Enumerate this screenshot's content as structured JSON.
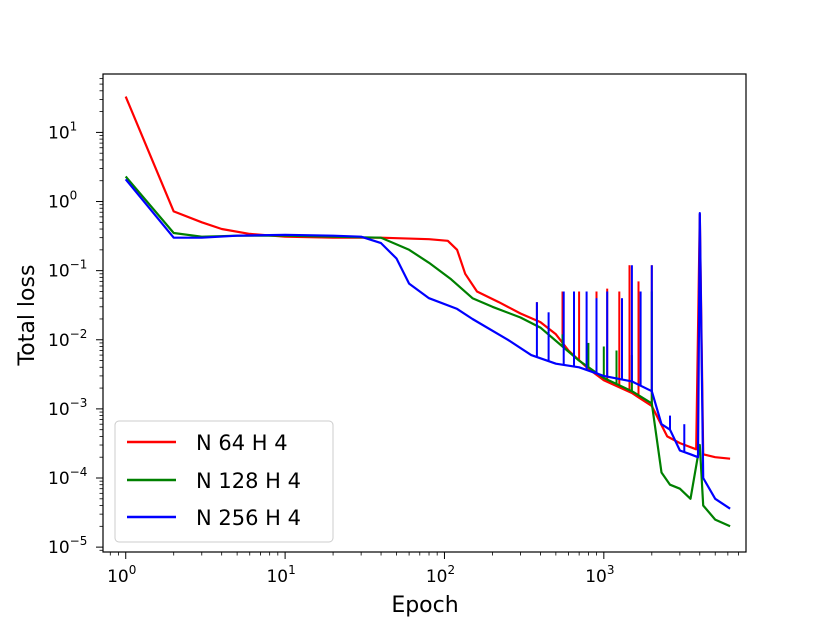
{
  "chart_data": {
    "type": "line",
    "xlabel": "Epoch",
    "ylabel": "Total loss",
    "xscale": "log",
    "yscale": "log",
    "xlim": [
      0.72,
      7800
    ],
    "ylim": [
      8.5e-06,
      70
    ],
    "grid": false,
    "legend_position": "lower-left",
    "x_ticks": [
      {
        "value": 1,
        "base": "10",
        "exp": "0"
      },
      {
        "value": 10,
        "base": "10",
        "exp": "1"
      },
      {
        "value": 100,
        "base": "10",
        "exp": "2"
      },
      {
        "value": 1000,
        "base": "10",
        "exp": "3"
      }
    ],
    "y_ticks": [
      {
        "value": 1e-05,
        "base": "10",
        "exp": "−5"
      },
      {
        "value": 0.0001,
        "base": "10",
        "exp": "−4"
      },
      {
        "value": 0.001,
        "base": "10",
        "exp": "−3"
      },
      {
        "value": 0.01,
        "base": "10",
        "exp": "−2"
      },
      {
        "value": 0.1,
        "base": "10",
        "exp": "−1"
      },
      {
        "value": 1,
        "base": "10",
        "exp": "0"
      },
      {
        "value": 10,
        "base": "10",
        "exp": "1"
      }
    ],
    "series": [
      {
        "name": "N 64 H 4",
        "color": "#ff0000",
        "points": [
          [
            1,
            33
          ],
          [
            2,
            0.72
          ],
          [
            3,
            0.5
          ],
          [
            4,
            0.4
          ],
          [
            6,
            0.34
          ],
          [
            10,
            0.31
          ],
          [
            20,
            0.3
          ],
          [
            40,
            0.3
          ],
          [
            80,
            0.285
          ],
          [
            105,
            0.27
          ],
          [
            120,
            0.2
          ],
          [
            135,
            0.09
          ],
          [
            160,
            0.05
          ],
          [
            220,
            0.035
          ],
          [
            300,
            0.024
          ],
          [
            400,
            0.018
          ],
          [
            500,
            0.012
          ],
          [
            600,
            0.007
          ],
          [
            800,
            0.0038
          ],
          [
            1000,
            0.0026
          ],
          [
            1500,
            0.0017
          ],
          [
            2000,
            0.0011
          ],
          [
            2500,
            0.0004
          ],
          [
            3000,
            0.00032
          ],
          [
            3800,
            0.00026
          ],
          [
            4000,
            0.65
          ],
          [
            4200,
            0.00022
          ],
          [
            5000,
            0.0002
          ],
          [
            6200,
            0.00019
          ]
        ],
        "spikes": [
          [
            380,
            0.035
          ],
          [
            550,
            0.05
          ],
          [
            700,
            0.05
          ],
          [
            900,
            0.05
          ],
          [
            1050,
            0.055
          ],
          [
            1250,
            0.05
          ],
          [
            1450,
            0.12
          ],
          [
            1650,
            0.07
          ],
          [
            2000,
            0.12
          ]
        ]
      },
      {
        "name": "N 128 H 4",
        "color": "#008000",
        "points": [
          [
            1,
            2.3
          ],
          [
            2,
            0.35
          ],
          [
            3,
            0.31
          ],
          [
            5,
            0.32
          ],
          [
            10,
            0.32
          ],
          [
            20,
            0.31
          ],
          [
            40,
            0.3
          ],
          [
            60,
            0.2
          ],
          [
            80,
            0.13
          ],
          [
            110,
            0.075
          ],
          [
            150,
            0.04
          ],
          [
            200,
            0.03
          ],
          [
            300,
            0.021
          ],
          [
            400,
            0.015
          ],
          [
            550,
            0.008
          ],
          [
            700,
            0.005
          ],
          [
            1000,
            0.0028
          ],
          [
            1500,
            0.0018
          ],
          [
            2000,
            0.0012
          ],
          [
            2300,
            0.00012
          ],
          [
            2600,
            8e-05
          ],
          [
            3000,
            7e-05
          ],
          [
            3500,
            5e-05
          ],
          [
            4000,
            0.0003
          ],
          [
            4200,
            4e-05
          ],
          [
            5000,
            2.5e-05
          ],
          [
            6200,
            2e-05
          ]
        ],
        "spikes": [
          [
            550,
            0.012
          ],
          [
            800,
            0.009
          ],
          [
            1000,
            0.008
          ],
          [
            1200,
            0.007
          ],
          [
            1500,
            0.006
          ],
          [
            2000,
            0.05
          ]
        ]
      },
      {
        "name": "N 256 H 4",
        "color": "#0000ff",
        "points": [
          [
            1,
            2.1
          ],
          [
            2,
            0.3
          ],
          [
            3,
            0.3
          ],
          [
            5,
            0.32
          ],
          [
            10,
            0.33
          ],
          [
            20,
            0.32
          ],
          [
            30,
            0.31
          ],
          [
            40,
            0.25
          ],
          [
            50,
            0.15
          ],
          [
            60,
            0.065
          ],
          [
            80,
            0.04
          ],
          [
            120,
            0.028
          ],
          [
            150,
            0.02
          ],
          [
            250,
            0.01
          ],
          [
            350,
            0.006
          ],
          [
            500,
            0.0045
          ],
          [
            700,
            0.004
          ],
          [
            1000,
            0.003
          ],
          [
            1500,
            0.0025
          ],
          [
            2000,
            0.0018
          ],
          [
            2300,
            0.0006
          ],
          [
            2600,
            0.0005
          ],
          [
            3000,
            0.00025
          ],
          [
            3500,
            0.00022
          ],
          [
            3900,
            0.0002
          ],
          [
            4000,
            0.68
          ],
          [
            4200,
            0.0001
          ],
          [
            5000,
            5e-05
          ],
          [
            6200,
            3.6e-05
          ]
        ],
        "spikes": [
          [
            380,
            0.035
          ],
          [
            450,
            0.025
          ],
          [
            560,
            0.05
          ],
          [
            650,
            0.05
          ],
          [
            780,
            0.05
          ],
          [
            900,
            0.04
          ],
          [
            1050,
            0.05
          ],
          [
            1300,
            0.04
          ],
          [
            1500,
            0.12
          ],
          [
            1700,
            0.05
          ],
          [
            2000,
            0.12
          ],
          [
            2600,
            0.0008
          ],
          [
            3200,
            0.0006
          ]
        ]
      }
    ]
  }
}
